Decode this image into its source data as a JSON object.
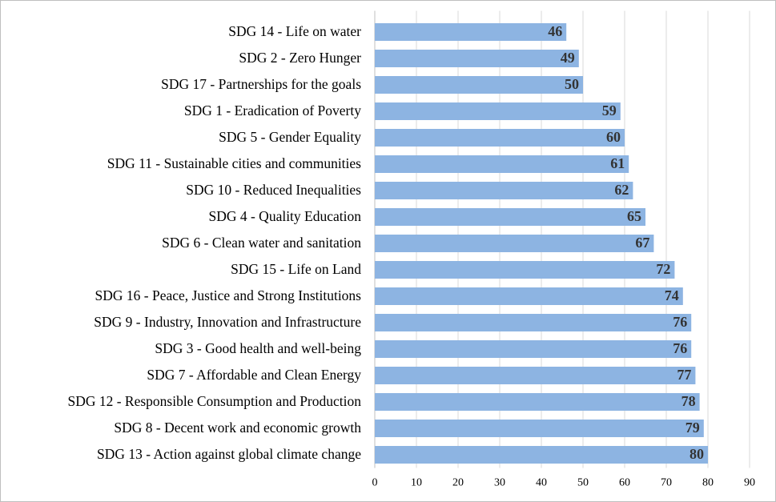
{
  "chart_data": {
    "type": "bar",
    "orientation": "horizontal",
    "categories": [
      "SDG 14 - Life on water",
      "SDG 2 - Zero Hunger",
      "SDG 17 - Partnerships for the goals",
      "SDG 1 - Eradication of Poverty",
      "SDG 5 - Gender Equality",
      "SDG 11 - Sustainable cities and communities",
      "SDG 10 - Reduced Inequalities",
      "SDG 4 - Quality Education",
      "SDG 6 - Clean water and sanitation",
      "SDG 15 - Life on Land",
      "SDG 16 - Peace, Justice and Strong Institutions",
      "SDG 9 - Industry, Innovation and Infrastructure",
      "SDG 3 - Good health and well-being",
      "SDG 7 - Affordable and Clean Energy",
      "SDG 12 - Responsible Consumption and Production",
      "SDG 8 - Decent work and economic growth",
      "SDG 13 - Action against global climate change"
    ],
    "values": [
      46,
      49,
      50,
      59,
      60,
      61,
      62,
      65,
      67,
      72,
      74,
      76,
      76,
      77,
      78,
      79,
      80
    ],
    "color": "#8db4e2",
    "xlim": [
      0,
      90
    ],
    "xticks": [
      0,
      10,
      20,
      30,
      40,
      50,
      60,
      70,
      80,
      90
    ],
    "grid": true
  }
}
